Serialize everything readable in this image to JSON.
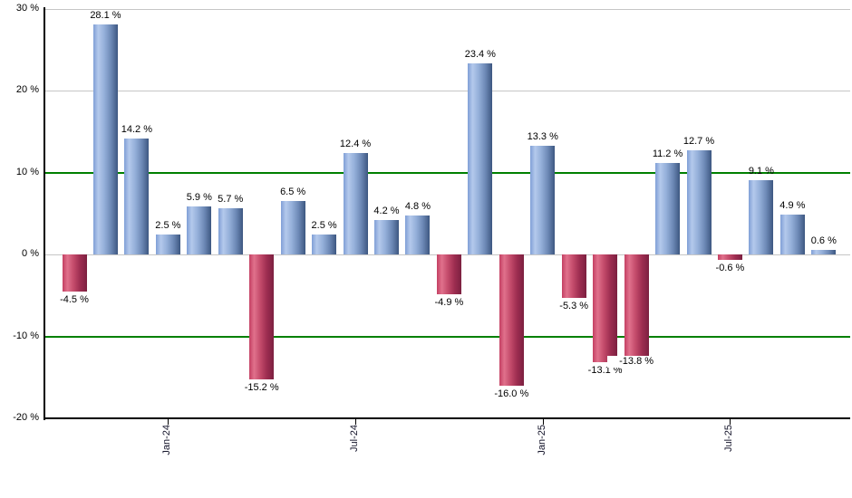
{
  "chart_data": {
    "type": "bar",
    "description": "Monthly percent returns bar chart, positive months blue, negative months red",
    "unit": "%",
    "values": [
      -4.5,
      28.1,
      14.2,
      2.5,
      5.9,
      5.7,
      -15.2,
      6.5,
      2.5,
      12.4,
      4.2,
      4.8,
      -4.9,
      23.4,
      -16.0,
      13.3,
      -5.3,
      -13.1,
      -13.8,
      11.2,
      12.7,
      -0.6,
      9.1,
      4.9,
      0.6
    ],
    "point_labels": [
      "-4.5 %",
      "28.1 %",
      "14.2 %",
      "2.5 %",
      "5.9 %",
      "5.7 %",
      "-15.2 %",
      "6.5 %",
      "2.5 %",
      "12.4 %",
      "4.2 %",
      "4.8 %",
      "-4.9 %",
      "23.4 %",
      "-16.0 %",
      "13.3 %",
      "-5.3 %",
      "-13.1 %",
      "-13.8 %",
      "11.2 %",
      "12.7 %",
      "-0.6 %",
      "9.1 %",
      "4.9 %",
      "0.6 %"
    ],
    "label_offsets": {
      "18": -16
    },
    "ylim": [
      -20,
      30
    ],
    "y_ticks": [
      {
        "label": "30 %",
        "value": 30
      },
      {
        "label": "20 %",
        "value": 20
      },
      {
        "label": "10 %",
        "value": 10
      },
      {
        "label": "0 %",
        "value": 0
      },
      {
        "label": "-10 %",
        "value": -10
      },
      {
        "label": "-20 %",
        "value": -20
      }
    ],
    "x_ticks": [
      {
        "label": "Jan-24",
        "index": 3
      },
      {
        "label": "Jul-24",
        "index": 9
      },
      {
        "label": "Jan-25",
        "index": 15
      },
      {
        "label": "Jul-25",
        "index": 21
      }
    ],
    "gridlines": [
      {
        "value": 30,
        "style": "gray"
      },
      {
        "value": 20,
        "style": "gray"
      },
      {
        "value": 10,
        "style": "green"
      },
      {
        "value": 0,
        "style": "gray"
      },
      {
        "value": -10,
        "style": "green"
      }
    ],
    "legend_position": "none",
    "grid": true,
    "colors": {
      "grid_gray": "#c6c6c6",
      "grid_green": "#008000",
      "axis": "#000000",
      "value_label_text": "#000000",
      "positive_gradient": [
        "#7f9fd6",
        "#b4c9ec",
        "#94afd9",
        "#6d89b6",
        "#3d5781"
      ],
      "negative_gradient": [
        "#c43f62",
        "#e0718c",
        "#c44b6b",
        "#9d2d50",
        "#7c2040"
      ]
    }
  }
}
